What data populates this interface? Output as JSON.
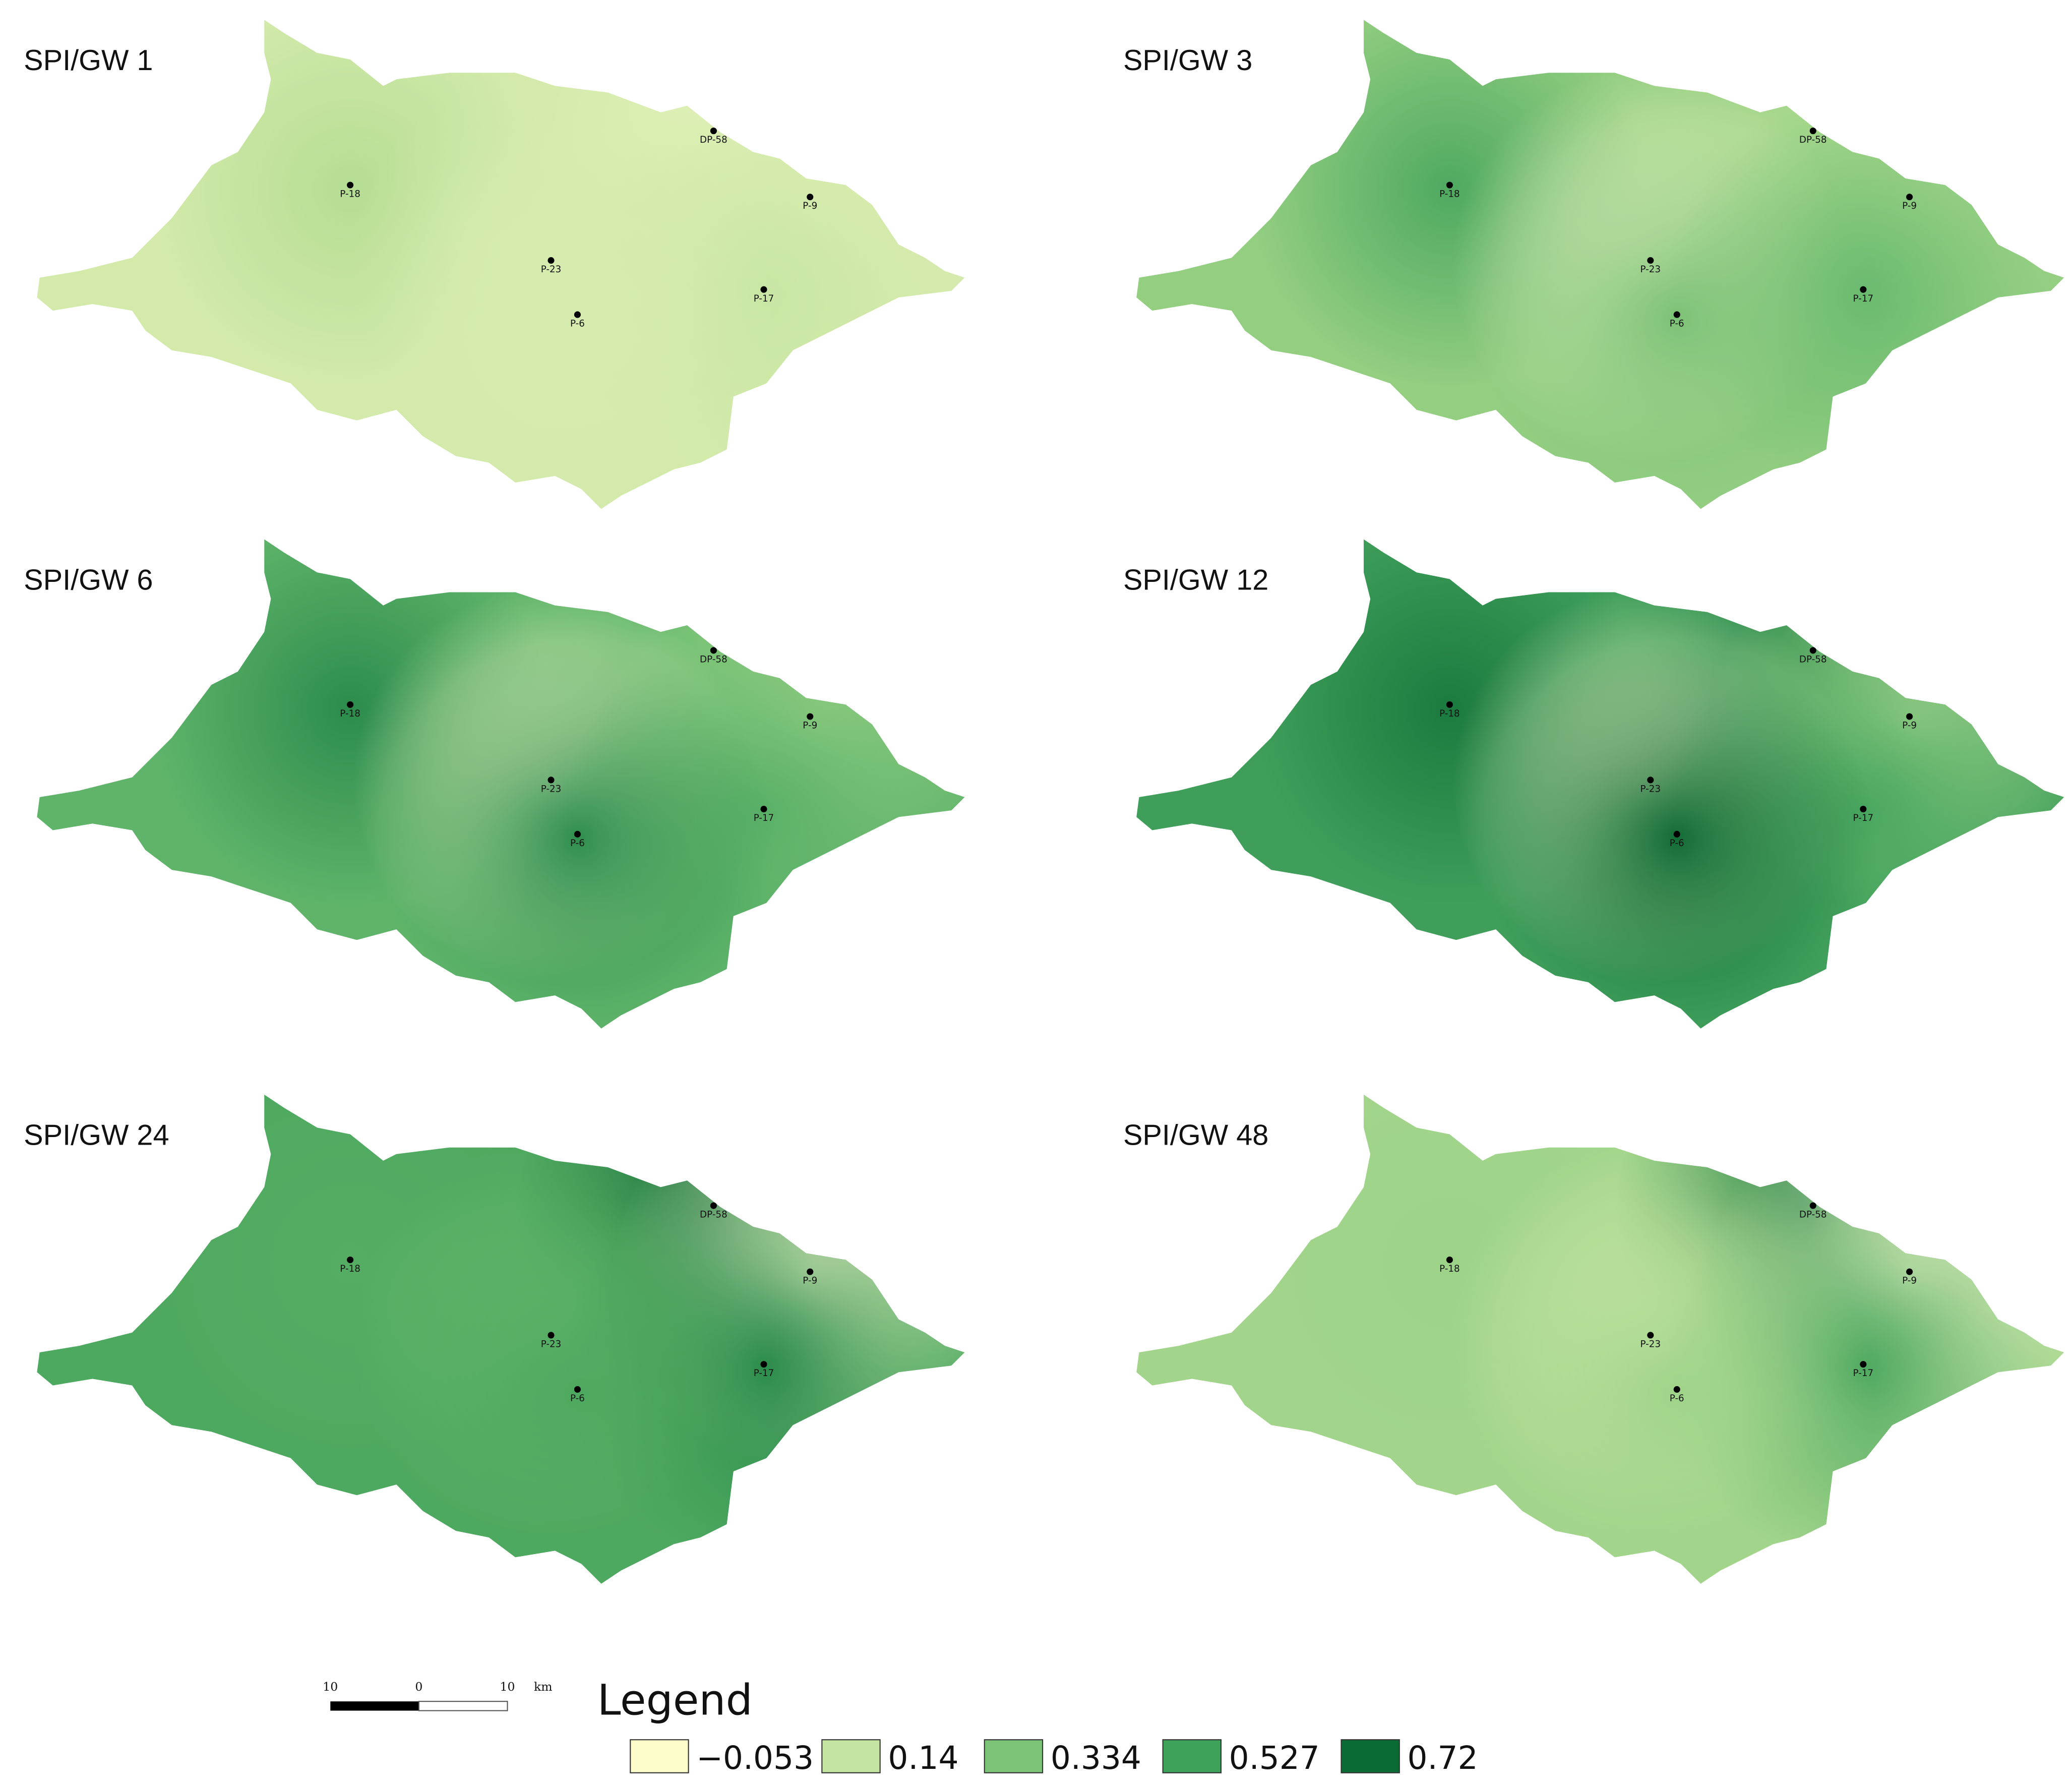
{
  "panels": [
    {
      "title": "SPI/GW 1",
      "fill": "#d3eaab",
      "station_colors": [
        "#b5dd93",
        "#dff0b6",
        "#dbeeb2",
        "#d6ecae",
        "#c9e6a3",
        "#d6ecae"
      ]
    },
    {
      "title": "SPI/GW 3",
      "fill": "#93ce81",
      "station_colors": [
        "#4ea960",
        "#a9d98e",
        "#a8d88d",
        "#f0f6c6",
        "#69ba6e",
        "#7cc277"
      ]
    },
    {
      "title": "SPI/GW 6",
      "fill": "#5fb46a",
      "station_colors": [
        "#2c8c4c",
        "#6dbd70",
        "#a2d68b",
        "#f8f9cc",
        "#5bb168",
        "#2f8f4e"
      ]
    },
    {
      "title": "SPI/GW 12",
      "fill": "#3f9f5a",
      "station_colors": [
        "#1b7a3f",
        "#2a8a4a",
        "#b5dd97",
        "#f2f7c8",
        "#4aa860",
        "#136c36"
      ]
    },
    {
      "title": "SPI/GW 24",
      "fill": "#4ea960",
      "station_colors": [
        "#55ad63",
        "#16703a",
        "#fbfcd0",
        "#6ab96d",
        "#2a8b4a",
        "#4ea960"
      ]
    },
    {
      "title": "SPI/GW 48",
      "fill": "#a2d58b",
      "station_colors": [
        "#9dd389",
        "#1f7e42",
        "#fbfcd0",
        "#d4ebab",
        "#4da85f",
        "#a0d48a"
      ]
    }
  ],
  "stations": [
    "P-18",
    "DP-58",
    "P-9",
    "P-23",
    "P-17",
    "P-6"
  ],
  "legend": {
    "title": "Legend",
    "items": [
      {
        "label": "−0.053",
        "color": "#fdfdcc"
      },
      {
        "label": "0.14",
        "color": "#c2e4a0"
      },
      {
        "label": "0.334",
        "color": "#7cc277"
      },
      {
        "label": "0.527",
        "color": "#3ea25a"
      },
      {
        "label": "0.72",
        "color": "#0a6b35"
      }
    ]
  },
  "scale_bar": {
    "labels": [
      "10",
      "0",
      "10",
      "km"
    ]
  }
}
